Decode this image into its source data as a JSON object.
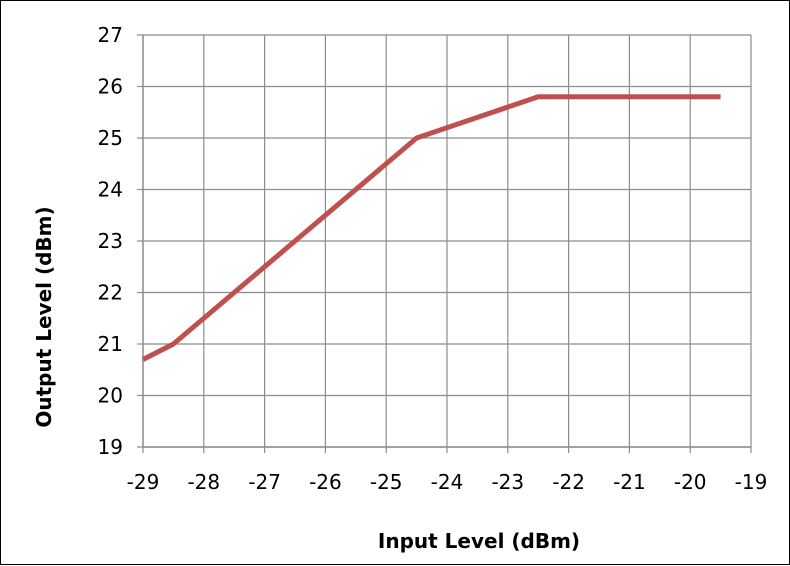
{
  "chart_data": {
    "type": "line",
    "title": "",
    "xlabel": "Input Level (dBm)",
    "ylabel": "Output Level (dBm)",
    "xlim": [
      -29,
      -19
    ],
    "ylim": [
      19,
      27
    ],
    "xticks": [
      -29,
      -28,
      -27,
      -26,
      -25,
      -24,
      -23,
      -22,
      -21,
      -20,
      -19
    ],
    "yticks": [
      19,
      20,
      21,
      22,
      23,
      24,
      25,
      26,
      27
    ],
    "grid": true,
    "legend": "none",
    "series": [
      {
        "color": "#c0504d",
        "x": [
          -29,
          -28.5,
          -24.5,
          -23.5,
          -22.5,
          -21.5,
          -20.5,
          -19.5
        ],
        "y": [
          20.7,
          21.0,
          25.0,
          25.4,
          25.8,
          25.8,
          25.8,
          25.8
        ]
      }
    ]
  }
}
